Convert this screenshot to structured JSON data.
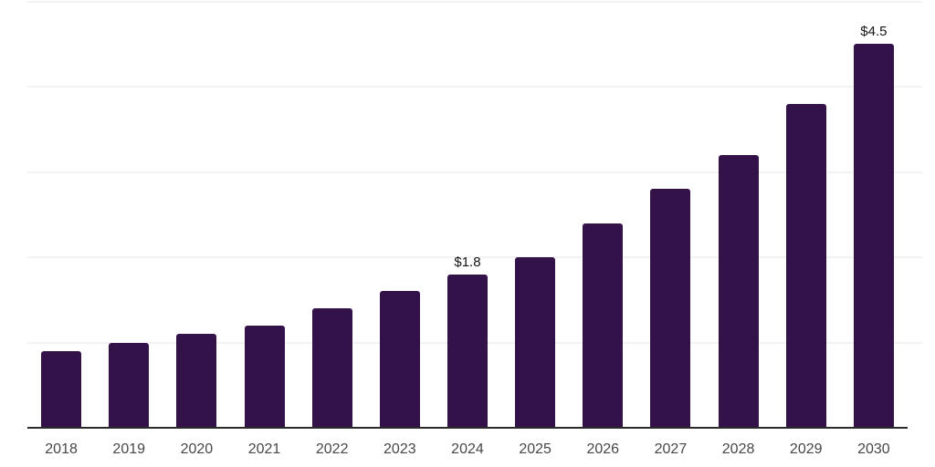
{
  "chart_data": {
    "type": "bar",
    "title": "",
    "xlabel": "",
    "ylabel": "",
    "categories": [
      "2018",
      "2019",
      "2020",
      "2021",
      "2022",
      "2023",
      "2024",
      "2025",
      "2026",
      "2027",
      "2028",
      "2029",
      "2030"
    ],
    "values": [
      0.9,
      1.0,
      1.1,
      1.2,
      1.4,
      1.6,
      1.8,
      2.0,
      2.4,
      2.8,
      3.2,
      3.8,
      4.5
    ],
    "data_labels": [
      "",
      "",
      "",
      "",
      "",
      "",
      "$1.8",
      "",
      "",
      "",
      "",
      "",
      "$4.5"
    ],
    "ylim": [
      0,
      5
    ],
    "grid": "horizontal",
    "gridline_values": [
      1,
      2,
      3,
      4,
      5
    ],
    "legend": "none",
    "colors": {
      "bar": "#33124A",
      "gridline": "#f2f2f2",
      "axis_line": "#2b2b2b",
      "x_label": "#474747",
      "value_label": "#141414",
      "background": "#ffffff"
    }
  }
}
